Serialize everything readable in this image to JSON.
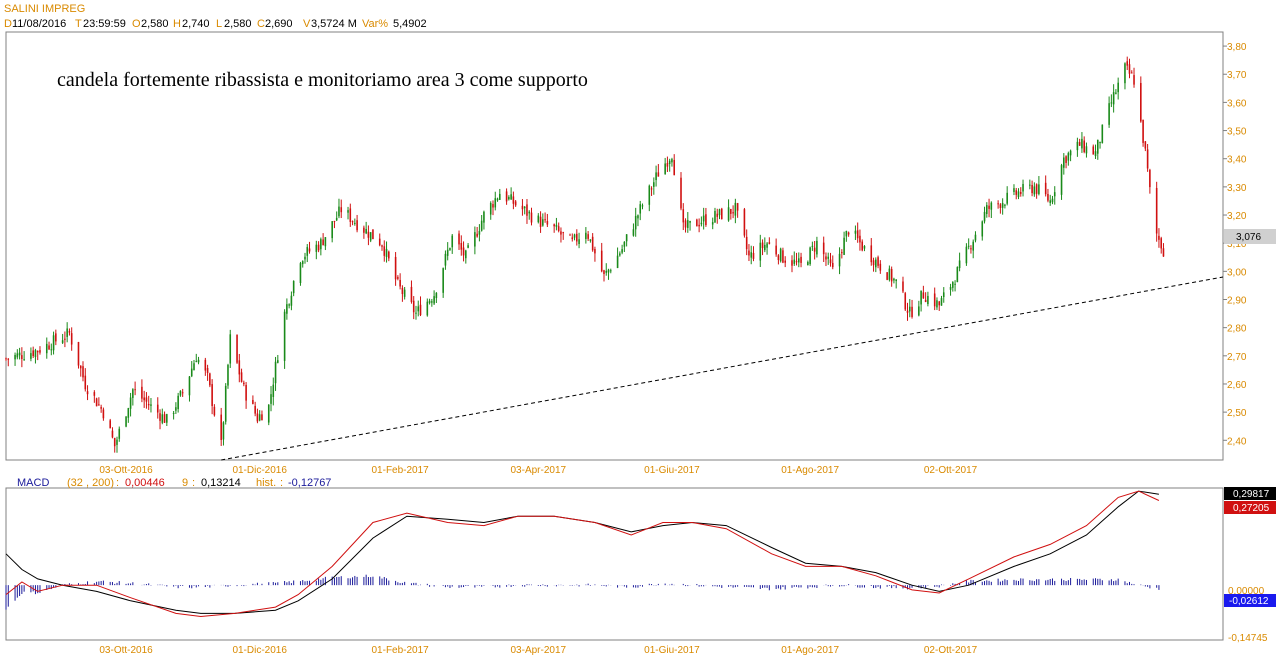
{
  "chart_data": [
    {
      "type": "candlestick",
      "title": "SALINI IMPREG",
      "ohlc_header": {
        "date_label": "D",
        "date": "11/08/2016",
        "time_label": "T",
        "time": "23:59:59",
        "open_label": "O",
        "open": "2,580",
        "high_label": "H",
        "high": "2,740",
        "low_label": "L",
        "low": "2,580",
        "close_label": "C",
        "close": "2,690",
        "volume_label": "V",
        "volume": "3,5724 M",
        "varpct_label": "Var%",
        "varpct": "5,4902"
      },
      "annotation": "candela fortemente ribassista e monitoriamo area 3 come supporto",
      "y_ticks": [
        "3,80",
        "3,70",
        "3,60",
        "3,50",
        "3,40",
        "3,30",
        "3,20",
        "3,10",
        "3,00",
        "2,90",
        "2,80",
        "2,70",
        "2,60",
        "2,50",
        "2,40"
      ],
      "ylim": [
        2.33,
        3.85
      ],
      "x_ticks": [
        "03-Ott-2016",
        "01-Dic-2016",
        "01-Feb-2017",
        "03-Apr-2017",
        "01-Giu-2017",
        "01-Ago-2017",
        "02-Ott-2017"
      ],
      "last_price_label": "3,076",
      "last_price": 3.076,
      "trendline": {
        "style": "dashed",
        "from": [
          "2016-11-14",
          2.33
        ],
        "to": [
          "2017-12-31",
          2.98
        ]
      },
      "bull_color": "#1a8a1a",
      "bear_color": "#d01010",
      "price_path": [
        [
          "2016-08-11",
          2.69
        ],
        [
          "2016-08-25",
          2.72
        ],
        [
          "2016-09-08",
          2.78
        ],
        [
          "2016-09-15",
          2.6
        ],
        [
          "2016-09-23",
          2.5
        ],
        [
          "2016-09-28",
          2.38
        ],
        [
          "2016-10-06",
          2.58
        ],
        [
          "2016-10-14",
          2.52
        ],
        [
          "2016-10-21",
          2.47
        ],
        [
          "2016-10-28",
          2.57
        ],
        [
          "2016-11-03",
          2.7
        ],
        [
          "2016-11-08",
          2.62
        ],
        [
          "2016-11-14",
          2.38
        ],
        [
          "2016-11-18",
          2.76
        ],
        [
          "2016-11-24",
          2.58
        ],
        [
          "2016-11-30",
          2.48
        ],
        [
          "2016-12-05",
          2.52
        ],
        [
          "2016-12-12",
          2.85
        ],
        [
          "2016-12-19",
          3.05
        ],
        [
          "2016-12-28",
          3.1
        ],
        [
          "2017-01-06",
          3.22
        ],
        [
          "2017-01-16",
          3.15
        ],
        [
          "2017-01-24",
          3.1
        ],
        [
          "2017-01-31",
          2.95
        ],
        [
          "2017-02-08",
          2.85
        ],
        [
          "2017-02-16",
          2.92
        ],
        [
          "2017-02-24",
          3.12
        ],
        [
          "2017-03-02",
          3.05
        ],
        [
          "2017-03-10",
          3.2
        ],
        [
          "2017-03-17",
          3.28
        ],
        [
          "2017-03-27",
          3.22
        ],
        [
          "2017-04-03",
          3.18
        ],
        [
          "2017-04-10",
          3.15
        ],
        [
          "2017-04-18",
          3.1
        ],
        [
          "2017-04-24",
          3.15
        ],
        [
          "2017-05-02",
          2.98
        ],
        [
          "2017-05-10",
          3.08
        ],
        [
          "2017-05-18",
          3.22
        ],
        [
          "2017-05-26",
          3.35
        ],
        [
          "2017-06-01",
          3.42
        ],
        [
          "2017-06-06",
          3.15
        ],
        [
          "2017-06-14",
          3.18
        ],
        [
          "2017-06-22",
          3.2
        ],
        [
          "2017-06-29",
          3.22
        ],
        [
          "2017-07-05",
          3.05
        ],
        [
          "2017-07-13",
          3.1
        ],
        [
          "2017-07-20",
          3.05
        ],
        [
          "2017-07-28",
          3.02
        ],
        [
          "2017-08-04",
          3.1
        ],
        [
          "2017-08-11",
          3.0
        ],
        [
          "2017-08-18",
          3.15
        ],
        [
          "2017-08-25",
          3.08
        ],
        [
          "2017-09-01",
          3.02
        ],
        [
          "2017-09-08",
          2.96
        ],
        [
          "2017-09-14",
          2.85
        ],
        [
          "2017-09-20",
          2.92
        ],
        [
          "2017-09-27",
          2.88
        ],
        [
          "2017-10-04",
          2.98
        ],
        [
          "2017-10-11",
          3.1
        ],
        [
          "2017-10-18",
          3.22
        ],
        [
          "2017-10-25",
          3.25
        ],
        [
          "2017-11-01",
          3.28
        ],
        [
          "2017-11-08",
          3.3
        ],
        [
          "2017-11-15",
          3.25
        ],
        [
          "2017-11-21",
          3.4
        ],
        [
          "2017-11-28",
          3.45
        ],
        [
          "2017-12-05",
          3.42
        ],
        [
          "2017-12-12",
          3.6
        ],
        [
          "2017-12-18",
          3.72
        ],
        [
          "2017-12-22",
          3.68
        ],
        [
          "2017-12-27",
          3.42
        ],
        [
          "2017-12-31",
          3.15
        ],
        [
          "2018-01-04",
          3.076
        ]
      ],
      "date_range": [
        "2016-08-11",
        "2018-01-06"
      ]
    },
    {
      "type": "line",
      "title": "MACD",
      "params_label": "(32 , 200)",
      "macd_value": "0,00446",
      "signal_label": "9",
      "signal_value": "0,13214",
      "hist_label": "hist.",
      "hist_value": "-0,12767",
      "y_ticks": [
        "0,00000",
        "-0,14745"
      ],
      "right_labels": {
        "signal_last": "0,29817",
        "macd_last": "0,27205",
        "hist_last": "-0,02612"
      },
      "x_ticks": [
        "03-Ott-2016",
        "01-Dic-2016",
        "01-Feb-2017",
        "03-Apr-2017",
        "01-Giu-2017",
        "01-Ago-2017",
        "02-Ott-2017"
      ],
      "ylim": [
        -0.175,
        0.31
      ],
      "series": [
        {
          "name": "MACD",
          "color": "#d01010",
          "values": [
            [
              "2016-08-11",
              -0.03
            ],
            [
              "2016-08-18",
              0.01
            ],
            [
              "2016-08-25",
              -0.02
            ],
            [
              "2016-09-05",
              0.0
            ],
            [
              "2016-09-20",
              0.0
            ],
            [
              "2016-10-05",
              -0.04
            ],
            [
              "2016-10-25",
              -0.09
            ],
            [
              "2016-11-05",
              -0.1
            ],
            [
              "2016-11-20",
              -0.09
            ],
            [
              "2016-12-08",
              -0.07
            ],
            [
              "2016-12-18",
              -0.03
            ],
            [
              "2017-01-02",
              0.06
            ],
            [
              "2017-01-20",
              0.2
            ],
            [
              "2017-02-04",
              0.23
            ],
            [
              "2017-02-22",
              0.2
            ],
            [
              "2017-03-10",
              0.19
            ],
            [
              "2017-03-25",
              0.22
            ],
            [
              "2017-04-10",
              0.22
            ],
            [
              "2017-04-28",
              0.2
            ],
            [
              "2017-05-14",
              0.16
            ],
            [
              "2017-05-28",
              0.2
            ],
            [
              "2017-06-10",
              0.2
            ],
            [
              "2017-06-25",
              0.18
            ],
            [
              "2017-07-15",
              0.1
            ],
            [
              "2017-07-30",
              0.06
            ],
            [
              "2017-08-15",
              0.06
            ],
            [
              "2017-08-30",
              0.03
            ],
            [
              "2017-09-15",
              -0.015
            ],
            [
              "2017-09-27",
              -0.025
            ],
            [
              "2017-10-10",
              0.02
            ],
            [
              "2017-10-30",
              0.09
            ],
            [
              "2017-11-15",
              0.13
            ],
            [
              "2017-12-01",
              0.19
            ],
            [
              "2017-12-15",
              0.28
            ],
            [
              "2017-12-24",
              0.3
            ],
            [
              "2018-01-02",
              0.27
            ]
          ]
        },
        {
          "name": "Signal",
          "color": "#000000",
          "values": [
            [
              "2016-08-11",
              0.1
            ],
            [
              "2016-08-18",
              0.05
            ],
            [
              "2016-08-25",
              0.02
            ],
            [
              "2016-09-05",
              0.0
            ],
            [
              "2016-09-20",
              -0.02
            ],
            [
              "2016-10-05",
              -0.05
            ],
            [
              "2016-10-25",
              -0.08
            ],
            [
              "2016-11-05",
              -0.09
            ],
            [
              "2016-11-20",
              -0.09
            ],
            [
              "2016-12-08",
              -0.08
            ],
            [
              "2016-12-18",
              -0.05
            ],
            [
              "2017-01-02",
              0.02
            ],
            [
              "2017-01-20",
              0.15
            ],
            [
              "2017-02-04",
              0.22
            ],
            [
              "2017-02-22",
              0.21
            ],
            [
              "2017-03-10",
              0.2
            ],
            [
              "2017-03-25",
              0.22
            ],
            [
              "2017-04-10",
              0.22
            ],
            [
              "2017-04-28",
              0.2
            ],
            [
              "2017-05-14",
              0.17
            ],
            [
              "2017-05-28",
              0.19
            ],
            [
              "2017-06-10",
              0.2
            ],
            [
              "2017-06-25",
              0.19
            ],
            [
              "2017-07-15",
              0.12
            ],
            [
              "2017-07-30",
              0.07
            ],
            [
              "2017-08-15",
              0.06
            ],
            [
              "2017-08-30",
              0.04
            ],
            [
              "2017-09-15",
              0.0
            ],
            [
              "2017-09-27",
              -0.02
            ],
            [
              "2017-10-10",
              0.0
            ],
            [
              "2017-10-30",
              0.06
            ],
            [
              "2017-11-15",
              0.1
            ],
            [
              "2017-12-01",
              0.16
            ],
            [
              "2017-12-15",
              0.25
            ],
            [
              "2017-12-24",
              0.3
            ],
            [
              "2018-01-02",
              0.29
            ]
          ]
        }
      ],
      "hist_color": "#1a1a9a"
    }
  ]
}
